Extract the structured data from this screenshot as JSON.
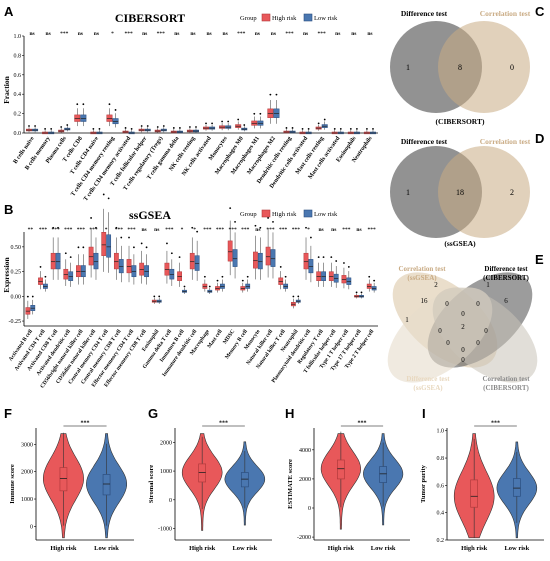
{
  "panel_letters": [
    "A",
    "B",
    "C",
    "D",
    "E",
    "F",
    "G",
    "H",
    "I"
  ],
  "colors": {
    "high": "#e8585a",
    "high_dark": "#b23a3c",
    "low": "#4a77b0",
    "low_dark": "#2c4f80",
    "venn_gray": "#6e6e6e",
    "venn_tan": "#c9ab84",
    "venn_light": "#d8d2c8"
  },
  "legend": {
    "title": "Group",
    "high": "High risk",
    "low": "Low risk"
  },
  "chart_data": [
    {
      "id": "A",
      "type": "box",
      "title": "CIBERSORT",
      "ylabel": "Fraction",
      "ylim": [
        0,
        1.0
      ],
      "yticks": [
        "0.0",
        "0.2",
        "0.4",
        "0.6",
        "0.8",
        "1.0"
      ],
      "categories": [
        "B cells naive",
        "B cells memory",
        "Plasma cells",
        "T cells CD8",
        "T cells CD4 naive",
        "T cells CD4 memory resting",
        "T cells CD4 memory activated",
        "T cells follicular helper",
        "T cells regulatory (Tregs)",
        "T cells gamma delta",
        "NK cells resting",
        "NK cells activated",
        "Monocytes",
        "Macrophages M0",
        "Macrophages M1",
        "Macrophages M2",
        "Dendritic cells resting",
        "Dendritic cells activated",
        "Mast cells resting",
        "Mast cells activated",
        "Eosinophils",
        "Neutrophils"
      ],
      "significance": [
        "ns",
        "ns",
        "***",
        "ns",
        "ns",
        "*",
        "***",
        "ns",
        "***",
        "ns",
        "ns",
        "ns",
        "ns",
        "***",
        "ns",
        "ns",
        "***",
        "ns",
        "***",
        "ns",
        "ns",
        "ns"
      ],
      "series": [
        {
          "name": "High risk",
          "medians": [
            0.03,
            0.0,
            0.02,
            0.15,
            0.0,
            0.15,
            0.01,
            0.03,
            0.02,
            0.01,
            0.02,
            0.05,
            0.06,
            0.07,
            0.1,
            0.2,
            0.01,
            0.0,
            0.05,
            0.0,
            0.0,
            0.0
          ]
        },
        {
          "name": "Low risk",
          "medians": [
            0.03,
            0.0,
            0.04,
            0.15,
            0.0,
            0.12,
            0.0,
            0.03,
            0.03,
            0.01,
            0.02,
            0.05,
            0.06,
            0.04,
            0.1,
            0.2,
            0.01,
            0.0,
            0.07,
            0.0,
            0.0,
            0.0
          ]
        }
      ]
    },
    {
      "id": "B",
      "type": "box",
      "title": "ssGSEA",
      "ylabel": "Expression",
      "ylim": [
        -0.3,
        0.65
      ],
      "yticks": [
        "-0.25",
        "0.00",
        "0.25",
        "0.50"
      ],
      "categories": [
        "Activated B cell",
        "Activated CD4 T cell",
        "Activated CD8 T cell",
        "Activated dendritic cell",
        "CD56bright natural killer cell",
        "CD56dim natural killer cell",
        "Central memory CD4 T cell",
        "Central memory CD8 T cell",
        "Effector memeory CD4 T cell",
        "Effector memeory CD8 T cell",
        "Eosinophil",
        "Gamma delta T cell",
        "Immature B cell",
        "Immature dendritic cell",
        "Macrophage",
        "Mast cell",
        "MDSC",
        "Memory B cell",
        "Monocyte",
        "Natural killer cell",
        "Natural killer T cell",
        "Neutrophil",
        "Plasmacytoid dendritic cell",
        "Regulatory T cell",
        "T follicular helper cell",
        "Type 1 T helper cell",
        "Type 17 T helper cell",
        "Type 2 T helper cell"
      ],
      "significance": [
        "**",
        "***",
        "***",
        "***",
        "***",
        "***",
        "*",
        "***",
        "***",
        "ns",
        "ns",
        "***",
        "*",
        "*",
        "***",
        "***",
        "***",
        "***",
        "ns",
        "***",
        "***",
        "***",
        "*",
        "ns",
        "ns",
        "***",
        "ns",
        "***"
      ],
      "series": [
        {
          "name": "High risk",
          "medians": [
            -0.15,
            0.15,
            0.35,
            0.22,
            0.25,
            0.4,
            0.52,
            0.35,
            0.3,
            0.27,
            -0.05,
            0.27,
            0.2,
            0.35,
            0.1,
            0.08,
            0.45,
            0.08,
            0.36,
            0.4,
            0.15,
            -0.08,
            0.35,
            0.2,
            0.2,
            0.17,
            0.0,
            0.1
          ]
        },
        {
          "name": "Low risk",
          "medians": [
            -0.12,
            0.1,
            0.35,
            0.2,
            0.25,
            0.35,
            0.5,
            0.3,
            0.25,
            0.25,
            -0.05,
            0.22,
            0.05,
            0.33,
            0.05,
            0.1,
            0.38,
            0.1,
            0.35,
            0.38,
            0.1,
            -0.05,
            0.3,
            0.2,
            0.18,
            0.15,
            0.0,
            0.08
          ]
        }
      ]
    },
    {
      "id": "F",
      "type": "violin",
      "ylabel": "Immune score",
      "categories": [
        "High risk",
        "Low risk"
      ],
      "yticks": [
        "0",
        "1000",
        "2000",
        "3000"
      ],
      "ylim": [
        -500,
        3600
      ],
      "medians": [
        1750,
        1550
      ],
      "q1": [
        1300,
        1150
      ],
      "q3": [
        2150,
        1900
      ],
      "sig": "***"
    },
    {
      "id": "G",
      "type": "violin",
      "ylabel": "Stromal score",
      "categories": [
        "High risk",
        "Low risk"
      ],
      "yticks": [
        "-1000",
        "0",
        "1000",
        "2000"
      ],
      "ylim": [
        -1400,
        2500
      ],
      "medians": [
        950,
        720
      ],
      "q1": [
        620,
        450
      ],
      "q3": [
        1250,
        950
      ],
      "sig": "***"
    },
    {
      "id": "H",
      "type": "violin",
      "ylabel": "ESTIMATE score",
      "categories": [
        "High risk",
        "Low risk"
      ],
      "yticks": [
        "-2000",
        "0",
        "2000",
        "4000"
      ],
      "ylim": [
        -2200,
        5500
      ],
      "medians": [
        2700,
        2350
      ],
      "q1": [
        2000,
        1750
      ],
      "q3": [
        3300,
        2850
      ],
      "sig": "***"
    },
    {
      "id": "I",
      "type": "violin",
      "ylabel": "Tumor purity",
      "categories": [
        "High risk",
        "Low risk"
      ],
      "yticks": [
        "0.2",
        "0.4",
        "0.6",
        "0.8",
        "1.0"
      ],
      "ylim": [
        0.2,
        1.02
      ],
      "medians": [
        0.52,
        0.58
      ],
      "q1": [
        0.44,
        0.52
      ],
      "q3": [
        0.64,
        0.65
      ],
      "sig": "***"
    }
  ],
  "venn_C": {
    "left": "Difference test",
    "right": "Correlation test",
    "caption": "(CIBERSORT)",
    "values": [
      "1",
      "8",
      "0"
    ]
  },
  "venn_D": {
    "left": "Difference test",
    "right": "Correlation test",
    "caption": "(ssGSEA)",
    "values": [
      "1",
      "18",
      "2"
    ]
  },
  "venn_E": {
    "labels": [
      "Correlation test\n(ssGSEA)",
      "Difference test\n(CIBERSORT)",
      "Difference test\n(ssGSEA)",
      "Correlation test\n(CIBERSORT)"
    ],
    "values": [
      "2",
      "1",
      "16",
      "6",
      "1",
      "0",
      "0",
      "0",
      "0",
      "2",
      "0",
      "0",
      "0",
      "0",
      "0"
    ]
  }
}
